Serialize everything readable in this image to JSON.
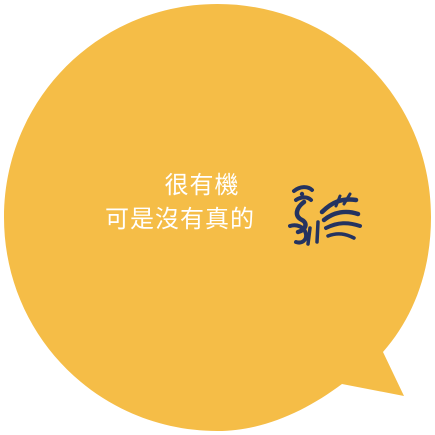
{
  "bubble": {
    "fill_color": "#f5bd47",
    "text_color": "#ffffff",
    "logo_color": "#243360"
  },
  "message": {
    "line1": "很有機",
    "line2": "可是沒有真的"
  },
  "logo": {
    "icon": "rooster-logo-icon"
  }
}
